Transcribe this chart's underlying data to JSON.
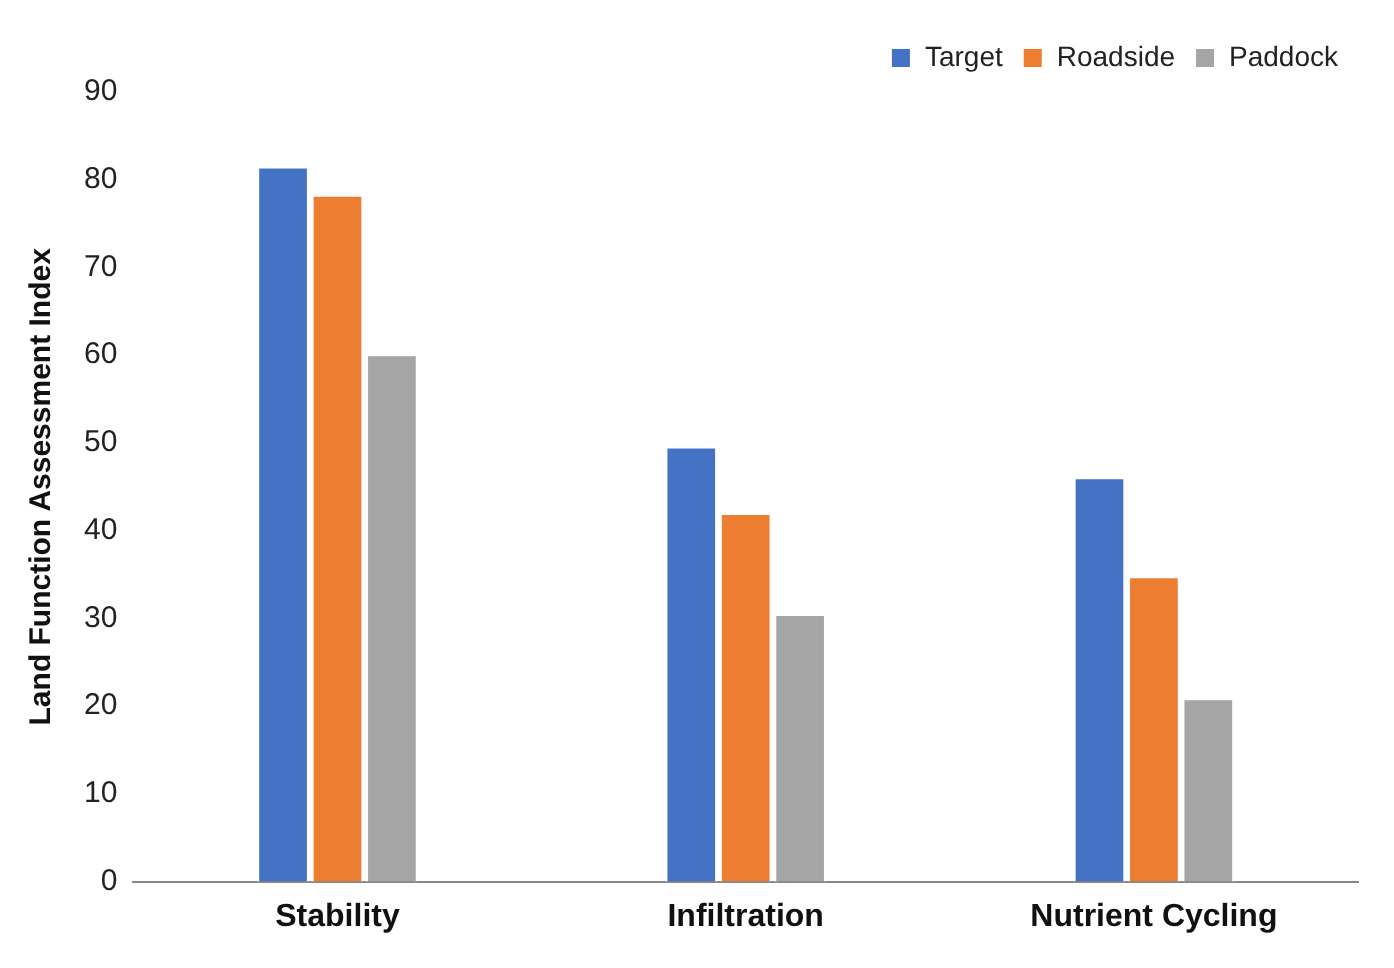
{
  "chart_data": {
    "type": "bar",
    "ylabel": "Land Function Assessment Index",
    "categories": [
      "Stability",
      "Infiltration",
      "Nutrient Cycling"
    ],
    "series": [
      {
        "name": "Target",
        "color": "#4472c4",
        "values": [
          81.5,
          49.6,
          46.1
        ]
      },
      {
        "name": "Roadside",
        "color": "#ed7d31",
        "values": [
          78.3,
          42,
          34.8
        ]
      },
      {
        "name": "Paddock",
        "color": "#a5a5a5",
        "values": [
          60.1,
          30.5,
          20.9
        ]
      }
    ],
    "ylim": [
      0,
      90
    ],
    "yticks": [
      0,
      10,
      20,
      30,
      40,
      50,
      60,
      70,
      80,
      90
    ],
    "grid": false,
    "legend": "top right"
  }
}
